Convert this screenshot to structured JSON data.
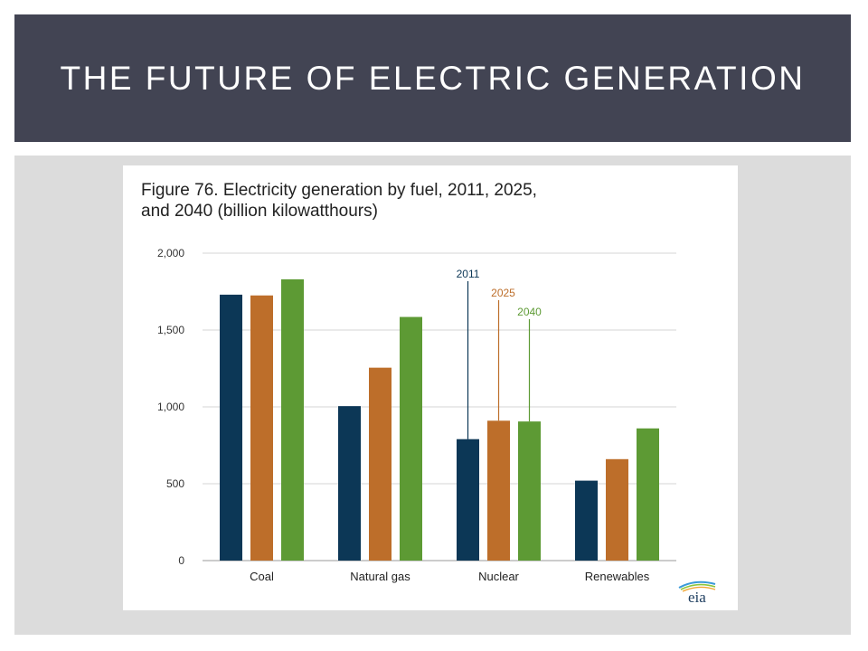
{
  "slide": {
    "title": "THE FUTURE OF ELECTRIC GENERATION"
  },
  "colors": {
    "banner": "#424453",
    "panel": "#dcdcdc"
  },
  "logo": {
    "text": "eia"
  },
  "chart_data": {
    "type": "bar",
    "title": "Figure 76. Electricity generation by fuel, 2011, 2025, and 2040 (billion kilowatthours)",
    "title_lines": [
      "Figure 76. Electricity generation by fuel, 2011, 2025,",
      "and 2040 (billion kilowatthours)"
    ],
    "categories": [
      "Coal",
      "Natural gas",
      "Nuclear",
      "Renewables"
    ],
    "series": [
      {
        "name": "2011",
        "color": "#0c3756",
        "values": [
          1730,
          1005,
          790,
          520
        ]
      },
      {
        "name": "2025",
        "color": "#bd6e2a",
        "values": [
          1725,
          1255,
          910,
          660
        ]
      },
      {
        "name": "2040",
        "color": "#5d9a34",
        "values": [
          1830,
          1585,
          905,
          860
        ]
      }
    ],
    "ylim": [
      0,
      2000
    ],
    "yticks": [
      0,
      500,
      1000,
      1500,
      2000
    ],
    "ytick_labels": [
      "0",
      "500",
      "1,000",
      "1,500",
      "2,000"
    ],
    "grid": true,
    "legend": "callout lines above Nuclear bars",
    "xlabel": "",
    "ylabel": ""
  }
}
